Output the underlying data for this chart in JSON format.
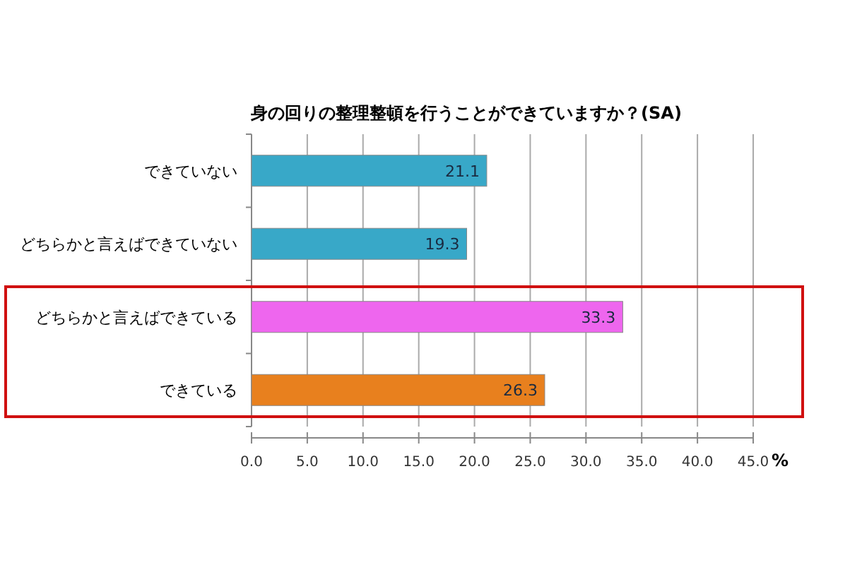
{
  "chart_data": {
    "type": "bar",
    "orientation": "horizontal",
    "title": "身の回りの整理整頓を行うことができていますか？(SA)",
    "xlabel": "%",
    "categories": [
      "できていない",
      "どちらかと言えばできていない",
      "どちらかと言えばできている",
      "できている"
    ],
    "values": [
      21.1,
      19.3,
      33.3,
      26.3
    ],
    "colors": [
      "#38a8c8",
      "#38a8c8",
      "#ee66ee",
      "#e8801e"
    ],
    "data_labels": true,
    "grid": "x",
    "xlim": [
      0,
      45
    ],
    "xticks": [
      {
        "value": 0,
        "label": "0.0"
      },
      {
        "value": 5,
        "label": "5.0"
      },
      {
        "value": 10,
        "label": "10.0"
      },
      {
        "value": 15,
        "label": "15.0"
      },
      {
        "value": 20,
        "label": "20.0"
      },
      {
        "value": 25,
        "label": "25.0"
      },
      {
        "value": 30,
        "label": "30.0"
      },
      {
        "value": 35,
        "label": "35.0"
      },
      {
        "value": 40,
        "label": "40.0"
      },
      {
        "value": 45,
        "label": "45.0"
      }
    ]
  }
}
